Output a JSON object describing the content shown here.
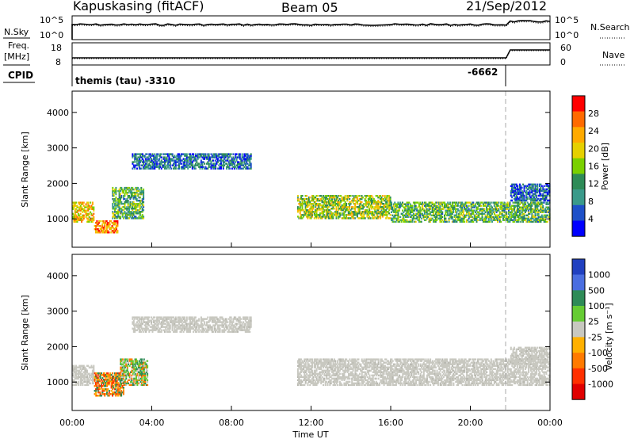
{
  "header": {
    "station": "Kapuskasing (fitACF)",
    "beam": "Beam 05",
    "date": "21/Sep/2012"
  },
  "top_panels": {
    "nsky_label": "N.Sky",
    "nsearch_label": "N.Search",
    "count_ticks": [
      "10^5",
      "10^0"
    ],
    "freq_label_1": "Freq.",
    "freq_label_2": "[MHz]",
    "freq_ticks": [
      "18",
      "8"
    ],
    "nave_label": "Nave",
    "nave_ticks": [
      "60",
      "0"
    ],
    "cpid_label": "CPID",
    "cpid_left": "themis (tau) -3310",
    "cpid_right": "-6662"
  },
  "chart_data": [
    {
      "type": "heatmap",
      "name": "power",
      "ylabel": "Slant Range [km]",
      "xlabel": "",
      "ylim": [
        200,
        4600
      ],
      "yticks": [
        "1000",
        "2000",
        "3000",
        "4000"
      ],
      "colorbar_label": "Power [dB]",
      "colorbar_ticks": [
        "28",
        "24",
        "20",
        "16",
        "12",
        "8",
        "4"
      ],
      "colorbar_colors": [
        "#ff0000",
        "#ff6a00",
        "#ffaa00",
        "#e6d000",
        "#7ad000",
        "#2e8b57",
        "#3a9a8a",
        "#1e50c8",
        "#0000ff"
      ],
      "regions": [
        {
          "t": [
            0.0,
            1.1
          ],
          "r": [
            900,
            1500
          ],
          "level": 20
        },
        {
          "t": [
            1.1,
            2.3
          ],
          "r": [
            600,
            1000
          ],
          "level": 24
        },
        {
          "t": [
            2.0,
            3.6
          ],
          "r": [
            1000,
            1900
          ],
          "level": 12
        },
        {
          "t": [
            3.0,
            9.0
          ],
          "r": [
            2400,
            2850
          ],
          "level": 6
        },
        {
          "t": [
            11.3,
            16.0
          ],
          "r": [
            1000,
            1700
          ],
          "level": 16
        },
        {
          "t": [
            16.0,
            24.0
          ],
          "r": [
            900,
            1500
          ],
          "level": 12
        },
        {
          "t": [
            22.0,
            24.0
          ],
          "r": [
            1500,
            2000
          ],
          "level": 6
        }
      ]
    },
    {
      "type": "heatmap",
      "name": "velocity",
      "ylabel": "Slant Range [km]",
      "xlabel": "Time UT",
      "ylim": [
        200,
        4600
      ],
      "yticks": [
        "1000",
        "2000",
        "3000",
        "4000"
      ],
      "xticks": [
        "00:00",
        "04:00",
        "08:00",
        "12:00",
        "16:00",
        "20:00",
        "00:00"
      ],
      "colorbar_label": "Velocity [m s⁻¹]",
      "colorbar_ticks": [
        "1000",
        "500",
        "100",
        "25",
        "-25",
        "-100",
        "-500",
        "-1000"
      ],
      "colorbar_colors": [
        "#2040c0",
        "#4a6ee0",
        "#2e8b57",
        "#66cc33",
        "#c8c8c0",
        "#ffb000",
        "#ff7a00",
        "#ff3000",
        "#e00000"
      ],
      "regions": [
        {
          "t": [
            0.0,
            1.1
          ],
          "r": [
            900,
            1500
          ],
          "level": 0
        },
        {
          "t": [
            1.1,
            2.6
          ],
          "r": [
            600,
            1300
          ],
          "level": -300
        },
        {
          "t": [
            2.4,
            3.8
          ],
          "r": [
            900,
            1700
          ],
          "level": 200
        },
        {
          "t": [
            3.0,
            9.0
          ],
          "r": [
            2400,
            2850
          ],
          "level": 0
        },
        {
          "t": [
            11.3,
            24.0
          ],
          "r": [
            900,
            1700
          ],
          "level": 0
        },
        {
          "t": [
            22.0,
            24.0
          ],
          "r": [
            1500,
            2000
          ],
          "level": 0
        }
      ]
    }
  ]
}
